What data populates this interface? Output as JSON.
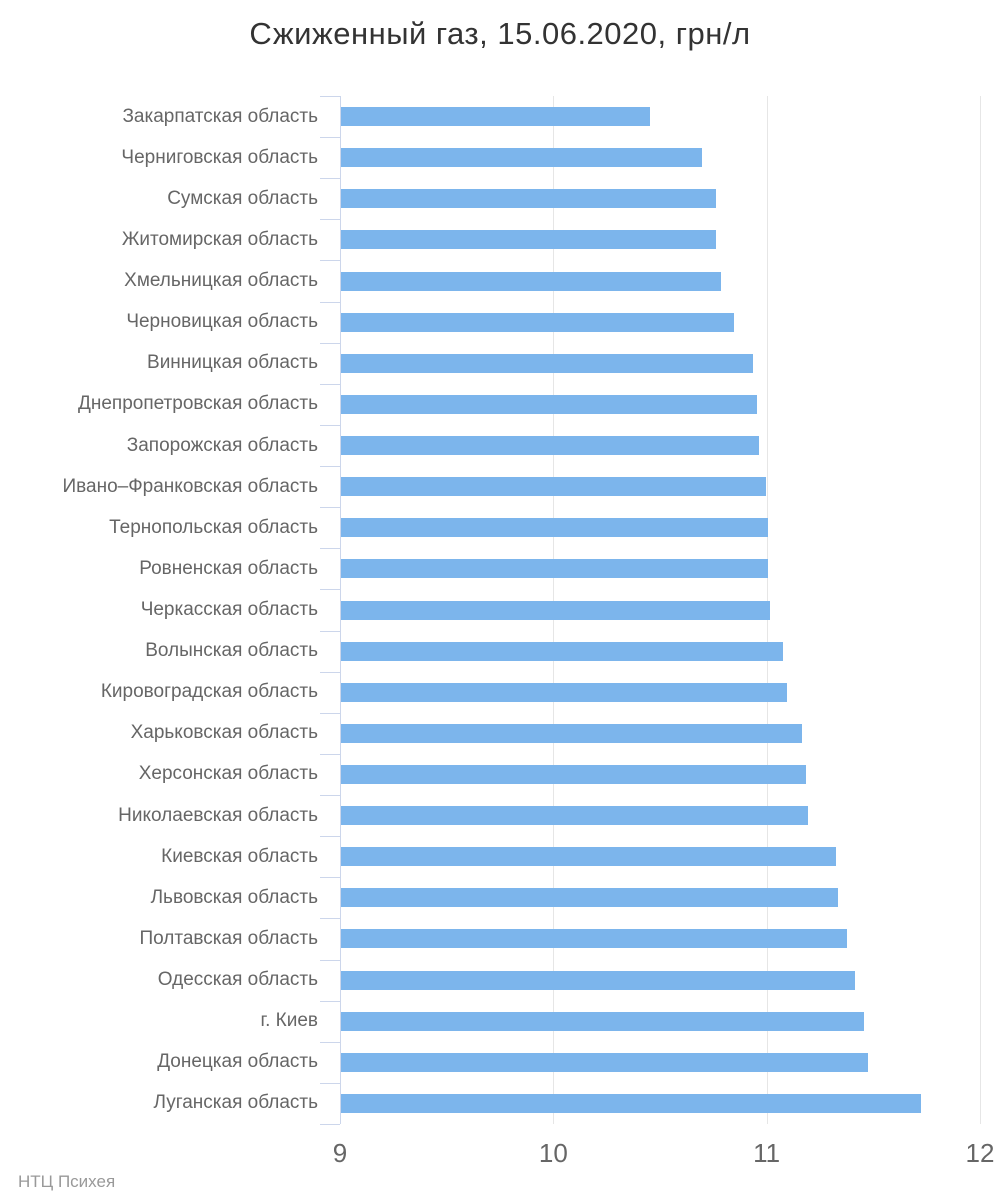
{
  "chart_data": {
    "type": "bar",
    "orientation": "horizontal",
    "title": "Сжиженный газ, 15.06.2020, грн/л",
    "source": "НТЦ Психея",
    "xlabel": "",
    "ylabel": "",
    "xlim": [
      9,
      12
    ],
    "x_ticks": [
      9,
      10,
      11,
      12
    ],
    "grid": true,
    "legend": "none",
    "categories": [
      "Закарпатская область",
      "Черниговская область",
      "Сумская область",
      "Житомирская область",
      "Хмельницкая область",
      "Черновицкая область",
      "Винницкая область",
      "Днепропетровская область",
      "Запорожская область",
      "Ивано–Франковская область",
      "Тернопольская область",
      "Ровненская область",
      "Черкасская область",
      "Волынская область",
      "Кировоградская область",
      "Харьковская область",
      "Херсонская область",
      "Николаевская область",
      "Киевская область",
      "Львовская область",
      "Полтавская область",
      "Одесская область",
      "г. Киев",
      "Донецкая область",
      "Луганская область"
    ],
    "values": [
      10.45,
      10.69,
      10.76,
      10.76,
      10.78,
      10.84,
      10.93,
      10.95,
      10.96,
      10.99,
      11.0,
      11.0,
      11.01,
      11.07,
      11.09,
      11.16,
      11.18,
      11.19,
      11.32,
      11.33,
      11.37,
      11.41,
      11.45,
      11.47,
      11.72
    ]
  },
  "colors": {
    "bar": "#7cb5ec",
    "axis": "#ccd6eb",
    "grid": "#e6e6e6",
    "title_text": "#333333",
    "label_text": "#666666",
    "credits_text": "#999999"
  }
}
